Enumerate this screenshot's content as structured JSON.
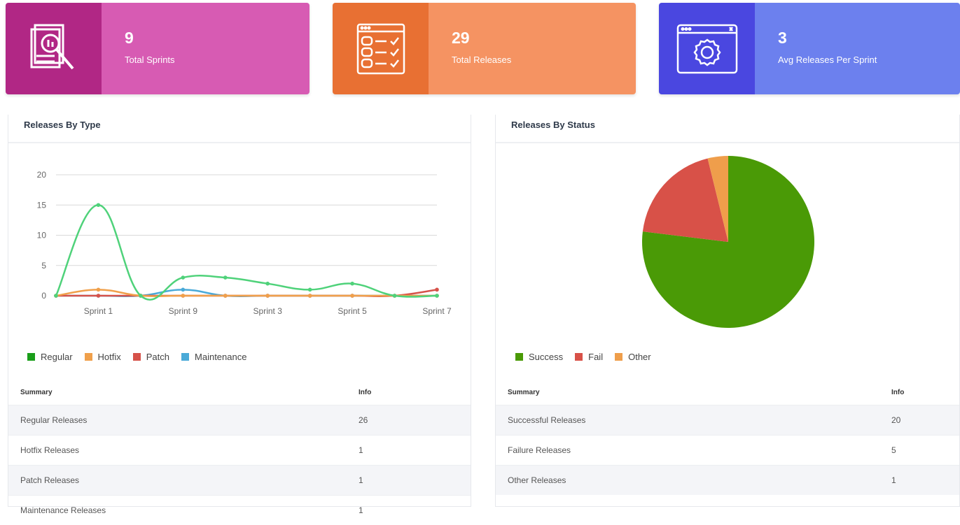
{
  "stats": [
    {
      "value": "9",
      "label": "Total Sprints",
      "icon": "document-analytics-icon",
      "icon_bg": "#b12785",
      "bg": "#d75bb3"
    },
    {
      "value": "29",
      "label": "Total Releases",
      "icon": "checklist-icon",
      "icon_bg": "#e87033",
      "bg": "#f59362"
    },
    {
      "value": "3",
      "label": "Avg Releases Per Sprint",
      "icon": "settings-window-icon",
      "icon_bg": "#4a47e0",
      "bg": "#6c80ee"
    }
  ],
  "type_card": {
    "title": "Releases By Type",
    "table_headers": [
      "Summary",
      "Info"
    ],
    "rows": [
      [
        "Regular Releases",
        "26"
      ],
      [
        "Hotfix Releases",
        "1"
      ],
      [
        "Patch Releases",
        "1"
      ],
      [
        "Maintenance Releases",
        "1"
      ]
    ]
  },
  "status_card": {
    "title": "Releases By Status",
    "table_headers": [
      "Summary",
      "Info"
    ],
    "rows": [
      [
        "Successful Releases",
        "20"
      ],
      [
        "Failure Releases",
        "5"
      ],
      [
        "Other Releases",
        "1"
      ]
    ]
  },
  "chart_data": [
    {
      "type": "line",
      "title": "Releases By Type",
      "x": [
        "",
        "Sprint 1",
        "",
        "Sprint 9",
        "",
        "Sprint 3",
        "",
        "Sprint 5",
        "",
        "Sprint 7"
      ],
      "ylim": [
        0,
        20
      ],
      "yticks": [
        0,
        5,
        10,
        15,
        20
      ],
      "grid": true,
      "legend": "bottom-left",
      "series": [
        {
          "name": "Regular",
          "color": "#1a9e1a",
          "line_color": "#4fd27a",
          "values": [
            0,
            15,
            0,
            3,
            3,
            2,
            1,
            2,
            0,
            0
          ]
        },
        {
          "name": "Hotfix",
          "color": "#f0a04b",
          "line_color": "#f0a04b",
          "values": [
            0,
            1,
            0,
            0,
            0,
            0,
            0,
            0,
            0,
            0
          ]
        },
        {
          "name": "Patch",
          "color": "#d6524a",
          "line_color": "#d6524a",
          "values": [
            0,
            0,
            0,
            0,
            0,
            0,
            0,
            0,
            0,
            1
          ]
        },
        {
          "name": "Maintenance",
          "color": "#4aaad8",
          "line_color": "#4aaad8",
          "values": [
            0,
            0,
            0,
            1,
            0,
            0,
            0,
            0,
            0,
            0
          ]
        }
      ]
    },
    {
      "type": "pie",
      "title": "Releases By Status",
      "legend": "bottom-left",
      "slices": [
        {
          "name": "Success",
          "value": 20,
          "color": "#4a9a06"
        },
        {
          "name": "Fail",
          "value": 5,
          "color": "#d85148"
        },
        {
          "name": "Other",
          "value": 1,
          "color": "#ef9e4b"
        }
      ]
    }
  ]
}
